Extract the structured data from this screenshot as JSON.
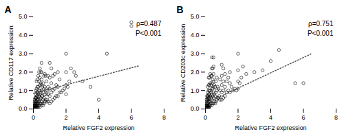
{
  "chart_data": [
    {
      "type": "scatter",
      "title": "A",
      "annotations": [
        "ρ=0.487",
        "P<0.001"
      ],
      "xlabel": "Relative FGF2 expression",
      "ylabel": "Relative CD117 expression",
      "xlim": [
        0,
        8
      ],
      "ylim": [
        0,
        5
      ],
      "xticks": [
        0,
        2,
        4,
        6,
        8
      ],
      "yticks": [
        0,
        1,
        2,
        3,
        4,
        5
      ],
      "series": [
        {
          "type": "scatter",
          "color": "#000000",
          "marker": "circle",
          "x": [
            0.05,
            0.05,
            0.05,
            0.05,
            0.05,
            0.08,
            0.08,
            0.08,
            0.1,
            0.1,
            0.1,
            0.1,
            0.1,
            0.1,
            0.12,
            0.12,
            0.12,
            0.15,
            0.15,
            0.15,
            0.15,
            0.15,
            0.15,
            0.15,
            0.15,
            0.18,
            0.18,
            0.18,
            0.2,
            0.2,
            0.2,
            0.2,
            0.2,
            0.2,
            0.2,
            0.2,
            0.2,
            0.25,
            0.25,
            0.25,
            0.25,
            0.25,
            0.25,
            0.25,
            0.25,
            0.3,
            0.3,
            0.3,
            0.3,
            0.3,
            0.3,
            0.35,
            0.35,
            0.35,
            0.35,
            0.35,
            0.35,
            0.4,
            0.4,
            0.4,
            0.4,
            0.4,
            0.4,
            0.4,
            0.4,
            0.45,
            0.45,
            0.45,
            0.45,
            0.45,
            0.5,
            0.5,
            0.5,
            0.5,
            0.5,
            0.5,
            0.5,
            0.5,
            0.55,
            0.55,
            0.55,
            0.6,
            0.6,
            0.6,
            0.6,
            0.65,
            0.65,
            0.65,
            0.65,
            0.7,
            0.7,
            0.7,
            0.7,
            0.75,
            0.75,
            0.75,
            0.8,
            0.8,
            0.8,
            0.85,
            0.85,
            0.9,
            0.9,
            0.9,
            0.9,
            1.0,
            1.0,
            1.0,
            1.0,
            1.0,
            1.1,
            1.1,
            1.1,
            1.1,
            1.2,
            1.2,
            1.2,
            1.3,
            1.3,
            1.3,
            1.4,
            1.4,
            1.5,
            1.5,
            1.5,
            1.6,
            1.6,
            1.7,
            1.8,
            1.9,
            2.0,
            2.0,
            2.0,
            2.0,
            2.1,
            2.2,
            2.3,
            2.5,
            2.6,
            3.0,
            3.5,
            4.0,
            4.5,
            6.0,
            6.0
          ],
          "values": [
            0.05,
            0.1,
            0.2,
            0.3,
            0.5,
            0.05,
            0.2,
            0.4,
            0.05,
            0.1,
            0.15,
            0.2,
            0.3,
            0.5,
            0.1,
            0.3,
            0.6,
            0.05,
            0.1,
            0.2,
            0.3,
            0.4,
            0.6,
            0.8,
            1.0,
            0.1,
            0.3,
            0.6,
            0.05,
            0.1,
            0.2,
            0.4,
            0.5,
            0.7,
            0.9,
            1.1,
            1.5,
            0.1,
            0.2,
            0.3,
            0.5,
            0.7,
            0.9,
            1.2,
            1.6,
            0.1,
            0.3,
            0.5,
            0.8,
            1.2,
            1.8,
            0.2,
            0.4,
            0.7,
            1.0,
            1.5,
            2.0,
            0.1,
            0.3,
            0.5,
            0.8,
            1.0,
            1.3,
            1.7,
            2.2,
            0.3,
            0.6,
            0.9,
            1.4,
            2.0,
            0.2,
            0.4,
            0.7,
            1.0,
            1.3,
            1.6,
            2.0,
            2.5,
            0.3,
            0.7,
            1.2,
            0.2,
            0.5,
            0.9,
            1.4,
            0.3,
            0.6,
            1.1,
            1.8,
            0.4,
            0.8,
            1.2,
            1.9,
            0.5,
            1.0,
            1.8,
            0.4,
            0.8,
            1.5,
            0.5,
            1.0,
            0.4,
            0.8,
            1.2,
            1.8,
            0.3,
            0.7,
            1.1,
            1.7,
            2.5,
            0.4,
            0.9,
            1.4,
            2.2,
            0.5,
            1.0,
            1.8,
            0.6,
            1.1,
            1.9,
            0.7,
            1.3,
            0.7,
            1.2,
            2.0,
            0.9,
            1.6,
            0.9,
            1.0,
            1.1,
            0.8,
            1.3,
            2.0,
            3.0,
            1.2,
            1.5,
            2.2,
            2.0,
            1.8,
            1.5,
            1.2,
            0.5,
            3.0,
            4.5,
            4.7
          ]
        },
        {
          "type": "line",
          "color": "#555555",
          "line_style": "dotted",
          "x": [
            0,
            6.5
          ],
          "values": [
            0.85,
            2.35
          ]
        }
      ]
    },
    {
      "type": "scatter",
      "title": "B",
      "annotations": [
        "ρ=0.751",
        "P<0.001"
      ],
      "xlabel": "Relative FGF2 expression",
      "ylabel": "Relative CD203c expression",
      "xlim": [
        0,
        8
      ],
      "ylim": [
        0,
        5
      ],
      "xticks": [
        0,
        2,
        4,
        6,
        8
      ],
      "yticks": [
        0,
        1,
        2,
        3,
        4,
        5
      ],
      "series": [
        {
          "type": "scatter",
          "color": "#000000",
          "marker": "circle",
          "x": [
            0.05,
            0.05,
            0.05,
            0.05,
            0.05,
            0.08,
            0.08,
            0.08,
            0.1,
            0.1,
            0.1,
            0.1,
            0.1,
            0.1,
            0.12,
            0.12,
            0.12,
            0.15,
            0.15,
            0.15,
            0.15,
            0.15,
            0.15,
            0.15,
            0.15,
            0.18,
            0.18,
            0.18,
            0.2,
            0.2,
            0.2,
            0.2,
            0.2,
            0.2,
            0.2,
            0.2,
            0.2,
            0.25,
            0.25,
            0.25,
            0.25,
            0.25,
            0.25,
            0.25,
            0.25,
            0.3,
            0.3,
            0.3,
            0.3,
            0.3,
            0.3,
            0.35,
            0.35,
            0.35,
            0.35,
            0.35,
            0.4,
            0.4,
            0.4,
            0.4,
            0.4,
            0.4,
            0.4,
            0.4,
            0.45,
            0.45,
            0.45,
            0.45,
            0.45,
            0.5,
            0.5,
            0.5,
            0.5,
            0.5,
            0.5,
            0.5,
            0.5,
            0.55,
            0.55,
            0.55,
            0.6,
            0.6,
            0.6,
            0.65,
            0.65,
            0.65,
            0.7,
            0.7,
            0.7,
            0.75,
            0.75,
            0.8,
            0.8,
            0.85,
            0.9,
            0.9,
            0.9,
            1.0,
            1.0,
            1.0,
            1.0,
            1.0,
            1.1,
            1.1,
            1.1,
            1.1,
            1.2,
            1.2,
            1.2,
            1.3,
            1.3,
            1.4,
            1.4,
            1.5,
            1.5,
            1.5,
            1.6,
            1.7,
            1.8,
            1.9,
            2.0,
            2.0,
            2.0,
            2.0,
            2.1,
            2.2,
            2.3,
            2.5,
            3.0,
            3.5,
            4.0,
            4.5,
            5.5,
            6.0
          ],
          "values": [
            0.05,
            0.1,
            0.2,
            0.3,
            0.5,
            0.05,
            0.2,
            0.4,
            0.05,
            0.1,
            0.2,
            0.3,
            0.5,
            0.7,
            0.1,
            0.3,
            0.6,
            0.05,
            0.1,
            0.2,
            0.3,
            0.5,
            0.7,
            0.9,
            1.2,
            0.1,
            0.4,
            0.7,
            0.05,
            0.1,
            0.2,
            0.4,
            0.6,
            0.8,
            1.0,
            1.3,
            1.7,
            0.1,
            0.2,
            0.4,
            0.6,
            0.8,
            1.0,
            1.3,
            1.7,
            0.2,
            0.4,
            0.7,
            1.0,
            1.4,
            1.9,
            0.3,
            0.6,
            0.9,
            1.3,
            1.8,
            0.2,
            0.5,
            0.8,
            1.1,
            1.4,
            1.8,
            2.2,
            2.8,
            0.3,
            0.7,
            1.1,
            1.6,
            2.2,
            0.3,
            0.6,
            0.9,
            1.2,
            1.5,
            1.9,
            2.3,
            2.8,
            0.4,
            0.8,
            1.3,
            0.3,
            0.7,
            1.2,
            0.4,
            0.9,
            1.5,
            0.5,
            1.0,
            1.7,
            0.6,
            1.2,
            0.6,
            1.1,
            0.7,
            0.5,
            1.0,
            1.6,
            0.5,
            0.9,
            1.3,
            1.8,
            2.4,
            0.6,
            1.0,
            1.5,
            2.2,
            0.7,
            1.2,
            1.9,
            0.9,
            1.5,
            1.0,
            1.7,
            0.9,
            1.4,
            2.0,
            1.2,
            1.0,
            1.1,
            1.0,
            1.1,
            1.5,
            2.1,
            3.0,
            1.4,
            1.7,
            2.3,
            1.9,
            2.0,
            2.1,
            2.6,
            3.2,
            1.4,
            1.4
          ]
        },
        {
          "type": "line",
          "color": "#555555",
          "line_style": "dotted",
          "x": [
            0,
            6.5
          ],
          "values": [
            0.3,
            3.0
          ]
        }
      ]
    }
  ]
}
